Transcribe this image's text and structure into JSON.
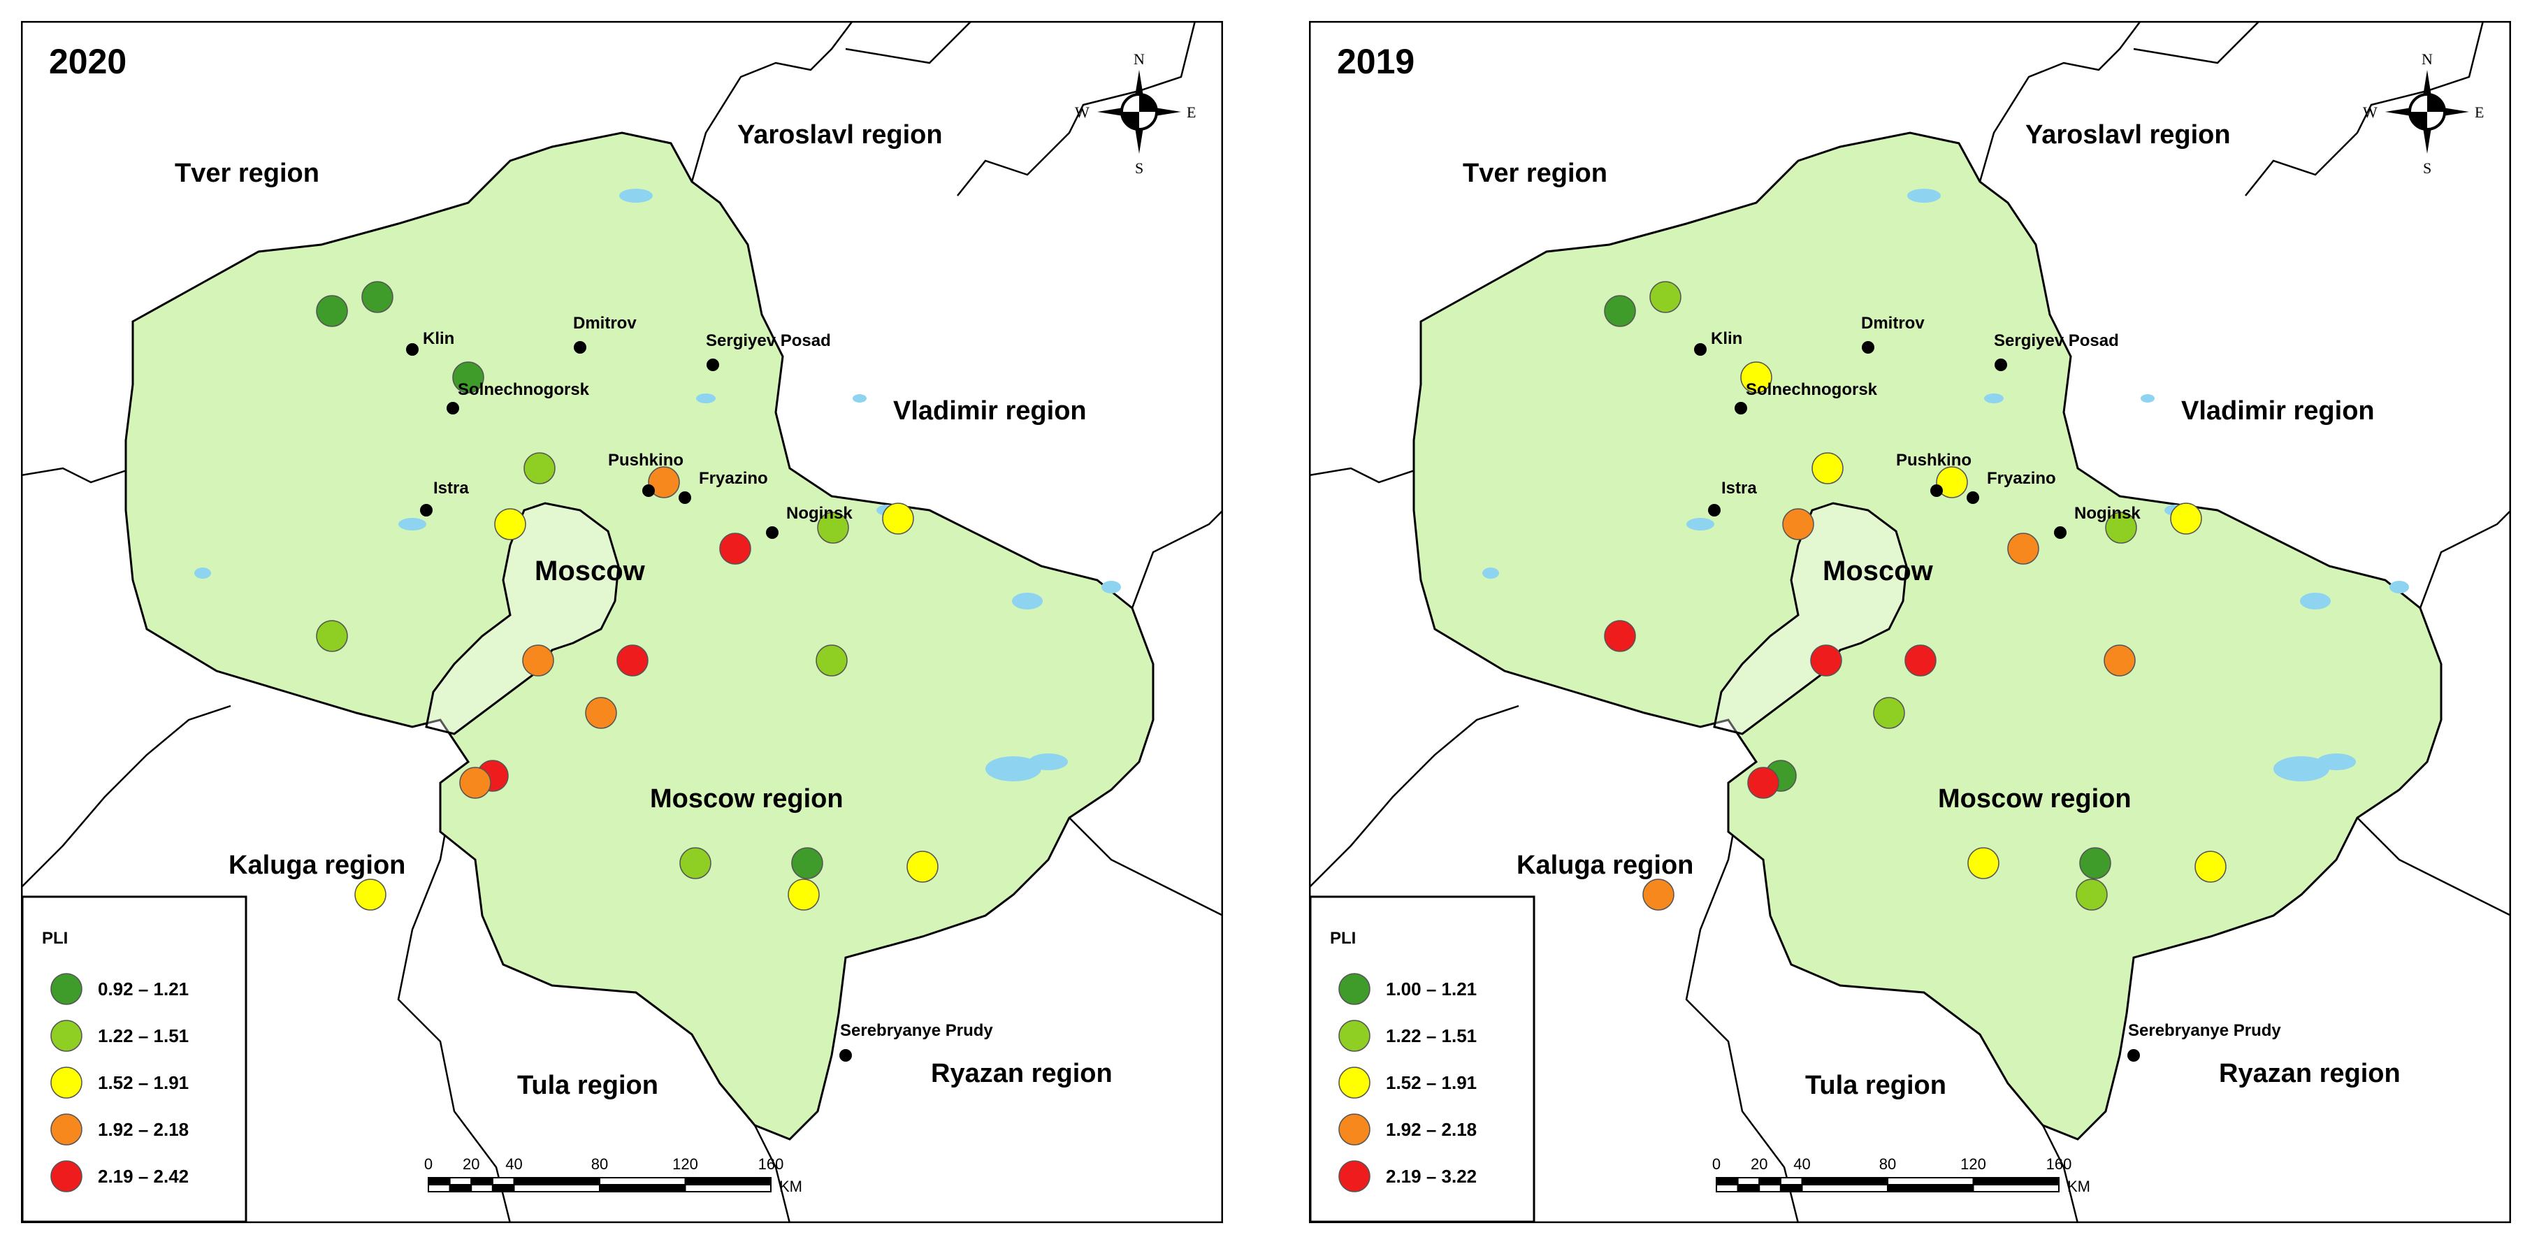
{
  "panels": [
    {
      "title": "2020",
      "legend_title": "PLI",
      "legend": [
        {
          "label": "0.92 – 1.21",
          "color": "#3f9b2a"
        },
        {
          "label": "1.22 – 1.51",
          "color": "#8fce22"
        },
        {
          "label": "1.52 – 1.91",
          "color": "#ffff00"
        },
        {
          "label": "1.92 – 2.18",
          "color": "#f7881e"
        },
        {
          "label": "2.19 – 2.42",
          "color": "#ee1c1c"
        }
      ],
      "regions": [
        "Tver region",
        "Yaroslavl region",
        "Vladimir region",
        "Moscow region",
        "Kaluga region",
        "Tula region",
        "Ryazan region"
      ],
      "moscow_label": "Moscow",
      "cities": [
        "Klin",
        "Dmitrov",
        "Sergiyev Posad",
        "Solnechnogorsk",
        "Istra",
        "Pushkino",
        "Fryazino",
        "Noginsk",
        "Serebryanye Prudy"
      ],
      "sites_class": [
        0,
        0,
        0,
        1,
        2,
        3,
        4,
        1,
        2,
        4,
        3,
        1,
        1,
        3,
        4,
        3,
        1,
        2,
        2,
        0,
        2
      ]
    },
    {
      "title": "2019",
      "legend_title": "PLI",
      "legend": [
        {
          "label": "1.00 – 1.21",
          "color": "#3f9b2a"
        },
        {
          "label": "1.22 – 1.51",
          "color": "#8fce22"
        },
        {
          "label": "1.52 – 1.91",
          "color": "#ffff00"
        },
        {
          "label": "1.92 – 2.18",
          "color": "#f7881e"
        },
        {
          "label": "2.19 – 3.22",
          "color": "#ee1c1c"
        }
      ],
      "regions": [
        "Tver region",
        "Yaroslavl region",
        "Vladimir region",
        "Moscow region",
        "Kaluga region",
        "Tula region",
        "Ryazan region"
      ],
      "moscow_label": "Moscow",
      "cities": [
        "Klin",
        "Dmitrov",
        "Sergiyev Posad",
        "Solnechnogorsk",
        "Istra",
        "Pushkino",
        "Fryazino",
        "Noginsk",
        "Serebryanye Prudy"
      ],
      "sites_class": [
        0,
        1,
        2,
        2,
        3,
        2,
        3,
        1,
        2,
        4,
        4,
        4,
        3,
        1,
        0,
        4,
        2,
        1,
        2,
        0,
        3
      ]
    }
  ],
  "scale_bar": {
    "ticks": [
      "0",
      "20",
      "40",
      "80",
      "120",
      "160"
    ],
    "unit": "KM"
  },
  "compass": {
    "n": "N",
    "s": "S",
    "e": "E",
    "w": "W"
  },
  "map_colors": {
    "land": "#d5f5b8",
    "water": "#8ed3f0",
    "border": "#000000"
  }
}
